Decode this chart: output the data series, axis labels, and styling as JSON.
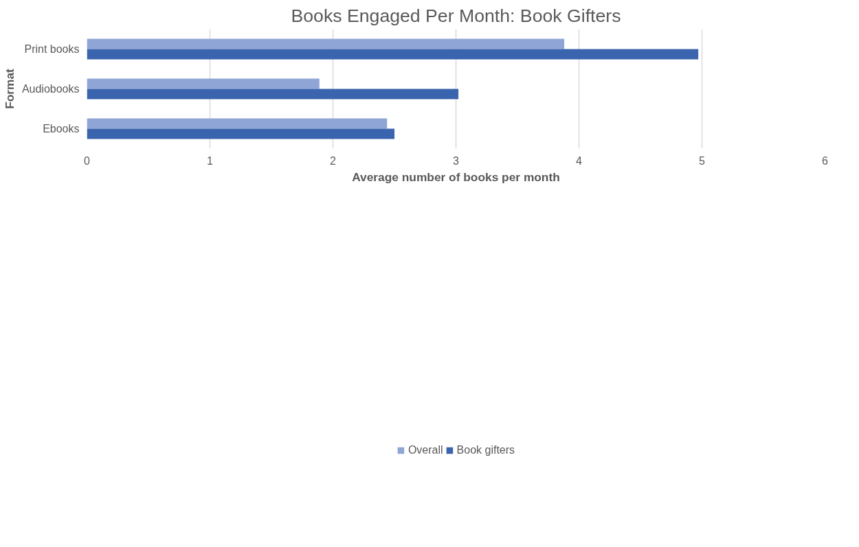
{
  "chart_data": {
    "type": "bar",
    "orientation": "horizontal",
    "title": "Books Engaged Per Month: Book Gifters",
    "xlabel": "Average number of books per month",
    "ylabel": "Format",
    "categories": [
      "Print books",
      "Audiobooks",
      "Ebooks"
    ],
    "series": [
      {
        "name": "Overall",
        "color": "#8fa5d6",
        "values": [
          3.88,
          1.89,
          2.44
        ]
      },
      {
        "name": "Book gifters",
        "color": "#3a64ad",
        "values": [
          4.97,
          3.02,
          2.5
        ]
      }
    ],
    "xlim": [
      0,
      6
    ],
    "xticks": [
      0,
      1,
      2,
      3,
      4,
      5,
      6
    ],
    "grid": "x",
    "legend": "bottom"
  }
}
